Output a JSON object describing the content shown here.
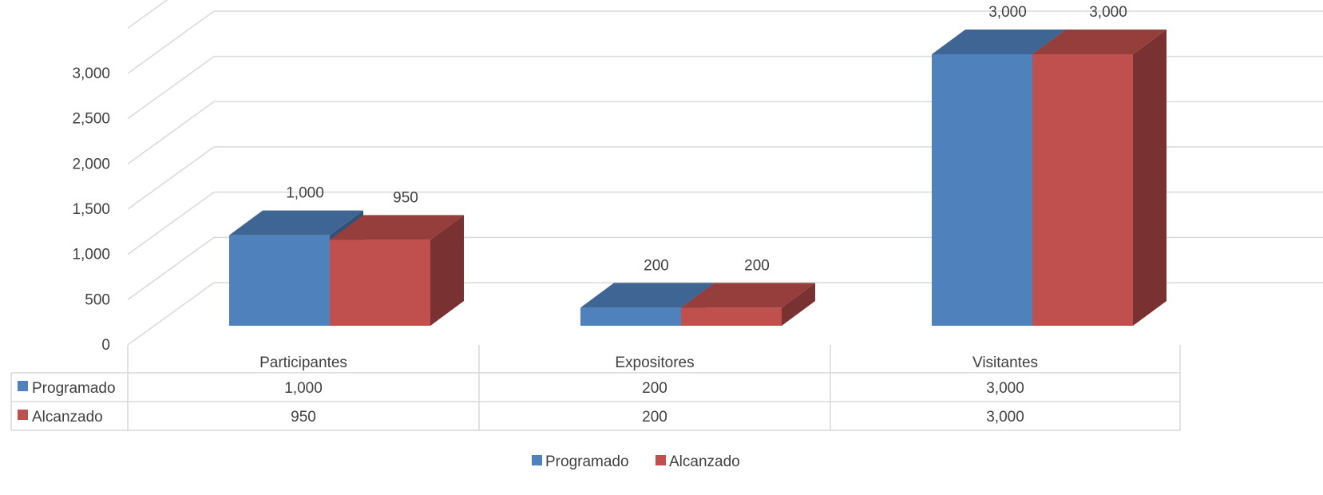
{
  "chart_data": {
    "type": "bar",
    "style": "3d-clustered-column-with-data-table",
    "categories": [
      "Participantes",
      "Expositores",
      "Visitantes"
    ],
    "series": [
      {
        "name": "Programado",
        "values": [
          1000,
          200,
          3000
        ],
        "labels": [
          "1,000",
          "200",
          "3,000"
        ],
        "color": "#4F81BD"
      },
      {
        "name": "Alcanzado",
        "values": [
          950,
          200,
          3000
        ],
        "labels": [
          "950",
          "200",
          "3,000"
        ],
        "color": "#C0504D"
      }
    ],
    "ylim": [
      0,
      3000
    ],
    "yticks": [
      0,
      500,
      1000,
      1500,
      2000,
      2500,
      3000
    ],
    "ytick_labels": [
      "0",
      "500",
      "1,000",
      "1,500",
      "2,000",
      "2,500",
      "3,000"
    ],
    "grid": true,
    "legend": "bottom",
    "title": "",
    "xlabel": "",
    "ylabel": ""
  }
}
